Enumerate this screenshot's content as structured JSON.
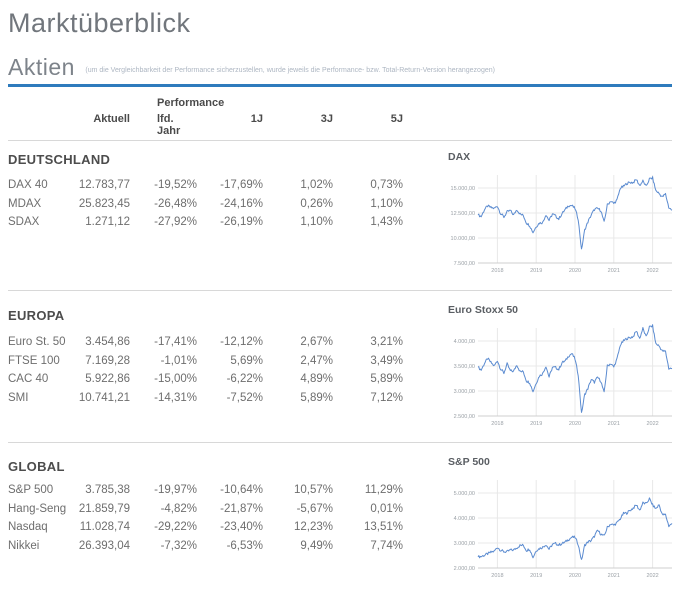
{
  "page": {
    "title": "Marktüberblick"
  },
  "aktien": {
    "title": "Aktien",
    "note": "(um die Vergleichbarkeit der Performance sicherzustellen, wurde jeweils die Performance- bzw. Total-Return-Version herangezogen)"
  },
  "table": {
    "group_header": "Performance",
    "columns": {
      "c0": "Aktuell",
      "c1": "lfd. Jahr",
      "c2": "1J",
      "c3": "3J",
      "c4": "5J"
    },
    "groups": [
      {
        "name": "DEUTSCHLAND",
        "rows": [
          {
            "label": "DAX 40",
            "values": [
              "12.783,77",
              "-19,52%",
              "-17,69%",
              "1,02%",
              "0,73%"
            ]
          },
          {
            "label": "MDAX",
            "values": [
              "25.823,45",
              "-26,48%",
              "-24,16%",
              "0,26%",
              "1,10%"
            ]
          },
          {
            "label": "SDAX",
            "values": [
              "1.271,12",
              "-27,92%",
              "-26,19%",
              "1,10%",
              "1,43%"
            ]
          }
        ]
      },
      {
        "name": "EUROPA",
        "rows": [
          {
            "label": "Euro St. 50",
            "values": [
              "3.454,86",
              "-17,41%",
              "-12,12%",
              "2,67%",
              "3,21%"
            ]
          },
          {
            "label": "FTSE 100",
            "values": [
              "7.169,28",
              "-1,01%",
              "5,69%",
              "2,47%",
              "3,49%"
            ]
          },
          {
            "label": "CAC 40",
            "values": [
              "5.922,86",
              "-15,00%",
              "-6,22%",
              "4,89%",
              "5,89%"
            ]
          },
          {
            "label": "SMI",
            "values": [
              "10.741,21",
              "-14,31%",
              "-7,52%",
              "5,89%",
              "7,12%"
            ]
          }
        ]
      },
      {
        "name": "GLOBAL",
        "rows": [
          {
            "label": "S&P 500",
            "values": [
              "3.785,38",
              "-19,97%",
              "-10,64%",
              "10,57%",
              "11,29%"
            ]
          },
          {
            "label": "Hang-Seng",
            "values": [
              "21.859,79",
              "-4,82%",
              "-21,87%",
              "-5,67%",
              "0,01%"
            ]
          },
          {
            "label": "Nasdaq",
            "values": [
              "11.028,74",
              "-29,22%",
              "-23,40%",
              "12,23%",
              "13,51%"
            ]
          },
          {
            "label": "Nikkei",
            "values": [
              "26.393,04",
              "-7,32%",
              "-6,53%",
              "9,49%",
              "7,74%"
            ]
          }
        ]
      }
    ]
  },
  "chart_data": [
    {
      "type": "line",
      "title": "DAX",
      "x_ticks": [
        "2018",
        "2019",
        "2020",
        "2021",
        "2022"
      ],
      "y_tick_labels": [
        "15.000,00",
        "12.500,00",
        "10.000,00",
        "7.500,00"
      ],
      "y_tick_values": [
        15000,
        12500,
        10000,
        7500
      ],
      "x_range": [
        "2017-07",
        "2022-07"
      ],
      "values": [
        12325,
        12150,
        12850,
        13200,
        13050,
        12950,
        13200,
        12450,
        12100,
        12600,
        12750,
        12300,
        12850,
        12400,
        12250,
        11500,
        11250,
        10550,
        11150,
        11500,
        11550,
        12350,
        11750,
        12400,
        12200,
        11900,
        12450,
        12850,
        13250,
        13250,
        12950,
        11900,
        8800,
        10800,
        11600,
        12300,
        12850,
        12950,
        12750,
        11550,
        13300,
        13700,
        13450,
        13800,
        15000,
        15150,
        15450,
        15550,
        15550,
        15850,
        15250,
        15700,
        15150,
        15900,
        16000,
        14750,
        14450,
        14100,
        14400,
        13050,
        12784
      ]
    },
    {
      "type": "line",
      "title": "Euro Stoxx 50",
      "x_ticks": [
        "2018",
        "2019",
        "2020",
        "2021",
        "2022"
      ],
      "y_tick_labels": [
        "4.000,00",
        "3.500,00",
        "3.000,00",
        "2.500,00"
      ],
      "y_tick_values": [
        4000,
        3500,
        3000,
        2500
      ],
      "x_range": [
        "2017-07",
        "2022-07"
      ],
      "values": [
        3480,
        3420,
        3555,
        3650,
        3570,
        3500,
        3610,
        3440,
        3360,
        3540,
        3405,
        3395,
        3525,
        3390,
        3385,
        3200,
        3170,
        2990,
        3160,
        3300,
        3350,
        3500,
        3280,
        3470,
        3470,
        3430,
        3570,
        3600,
        3700,
        3750,
        3640,
        3330,
        2550,
        2930,
        3050,
        3230,
        3175,
        3275,
        3195,
        2960,
        3500,
        3550,
        3480,
        3640,
        3920,
        4000,
        4050,
        4065,
        4090,
        4200,
        4050,
        4250,
        4080,
        4280,
        4300,
        3950,
        3900,
        3800,
        3790,
        3450,
        3455
      ]
    },
    {
      "type": "line",
      "title": "S&P 500",
      "x_ticks": [
        "2018",
        "2019",
        "2020",
        "2021",
        "2022"
      ],
      "y_tick_labels": [
        "5.000,00",
        "4.000,00",
        "3.000,00",
        "2.000,00"
      ],
      "y_tick_values": [
        5000,
        4000,
        3000,
        2000
      ],
      "x_range": [
        "2017-07",
        "2022-07"
      ],
      "values": [
        2450,
        2460,
        2510,
        2570,
        2630,
        2670,
        2830,
        2710,
        2650,
        2650,
        2720,
        2720,
        2810,
        2900,
        2910,
        2700,
        2760,
        2420,
        2700,
        2780,
        2830,
        2940,
        2750,
        2940,
        2980,
        2920,
        2980,
        3040,
        3140,
        3230,
        3230,
        2950,
        2300,
        2910,
        3040,
        3100,
        3270,
        3500,
        3360,
        3270,
        3620,
        3760,
        3710,
        3810,
        3970,
        4180,
        4200,
        4300,
        4400,
        4520,
        4310,
        4600,
        4570,
        4770,
        4520,
        4370,
        4530,
        4130,
        4130,
        3680,
        3785
      ]
    }
  ],
  "colors": {
    "accent_rule": "#2e7bbd",
    "chart_line": "#5b8bd0",
    "gridline": "#e8e8e8",
    "axis_line": "#cfcfcf",
    "axis_text": "#9aa0a6",
    "section_separator": "#d8d8d8"
  }
}
